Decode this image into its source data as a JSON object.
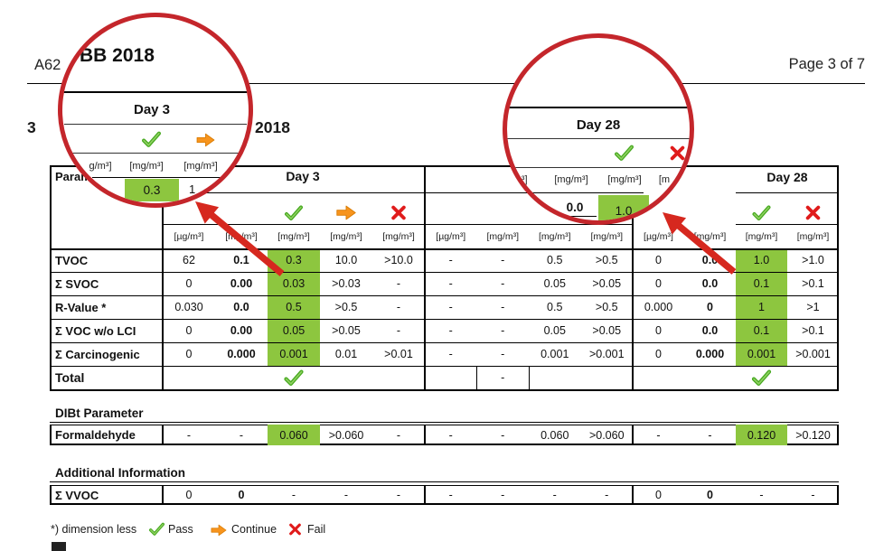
{
  "header": {
    "report_no_visible": "A62",
    "page_label": "Page 3 of 7"
  },
  "heading": {
    "left_fragment": "3",
    "right_fragment": "2018"
  },
  "table": {
    "parameter_label": "Parameter",
    "col_groups": {
      "day3": {
        "label": "Day 3",
        "icons": [
          "pass-check",
          "continue-arrow",
          "fail-x"
        ],
        "units": [
          "[µg/m³]",
          "[mg/m³]",
          "[mg/m³]",
          "[mg/m³]",
          "[mg/m³]"
        ]
      },
      "middle": {
        "units": [
          "[µg/m³]",
          "[mg/m³]",
          "[mg/m³]",
          "[mg/m³]"
        ]
      },
      "day28": {
        "label": "Day 28",
        "icons": [
          "pass-check",
          "fail-x"
        ],
        "units": [
          "[µg/m³]",
          "[mg/m³]",
          "[mg/m³]",
          "[mg/m³]"
        ]
      }
    },
    "rows": [
      {
        "name": "TVOC",
        "cells": [
          "62",
          "0.1",
          "0.3",
          "10.0",
          ">10.0",
          "-",
          "-",
          "0.5",
          ">0.5",
          "0",
          "0.0",
          "1.0",
          ">1.0"
        ]
      },
      {
        "name": "Σ SVOC",
        "cells": [
          "0",
          "0.00",
          "0.03",
          ">0.03",
          "-",
          "-",
          "-",
          "0.05",
          ">0.05",
          "0",
          "0.0",
          "0.1",
          ">0.1"
        ]
      },
      {
        "name": "R-Value  *",
        "cells": [
          "0.030",
          "0.0",
          "0.5",
          ">0.5",
          "-",
          "-",
          "-",
          "0.5",
          ">0.5",
          "0.000",
          "0",
          "1",
          ">1"
        ]
      },
      {
        "name": "Σ VOC w/o LCI",
        "cells": [
          "0",
          "0.00",
          "0.05",
          ">0.05",
          "-",
          "-",
          "-",
          "0.05",
          ">0.05",
          "0",
          "0.0",
          "0.1",
          ">0.1"
        ]
      },
      {
        "name": "Σ Carcinogenic",
        "cells": [
          "0",
          "0.000",
          "0.001",
          "0.01",
          ">0.01",
          "-",
          "-",
          "0.001",
          ">0.001",
          "0",
          "0.000",
          "0.001",
          ">0.001"
        ]
      }
    ],
    "total_row": {
      "name": "Total",
      "middle_value": "-"
    },
    "sections": {
      "dibt": "DIBt Parameter",
      "additional": "Additional Information"
    },
    "formaldehyde_row": {
      "name": "Formaldehyde",
      "cells": [
        "-",
        "-",
        "0.060",
        ">0.060",
        "-",
        "-",
        "-",
        "0.060",
        ">0.060",
        "-",
        "-",
        "0.120",
        ">0.120"
      ]
    },
    "vvoc_row": {
      "name": "Σ VVOC",
      "cells": [
        "0",
        "0",
        "-",
        "-",
        "-",
        "-",
        "-",
        "-",
        "-",
        "0",
        "0",
        "-",
        "-"
      ]
    }
  },
  "magnifier_left": {
    "heading_fragment": "BB 2018",
    "day_label": "Day 3",
    "units": [
      "g/m³]",
      "[mg/m³]",
      "[mg/m³]"
    ],
    "green_value": "0.3",
    "partial_value": "1"
  },
  "magnifier_right": {
    "day_label": "Day 28",
    "units": [
      "g/m³]",
      "[mg/m³]",
      "[mg/m³]",
      "[m"
    ],
    "value": "0.0",
    "green_value": "1.0"
  },
  "legend": {
    "footnote": "*) dimension less",
    "pass": "Pass",
    "continue": "Continue",
    "fail": "Fail"
  },
  "colors": {
    "pass_green_fill": "#8dc63f",
    "circle_red": "#c4262b",
    "arrow_red": "#d6281f",
    "check_green": "#45a81e",
    "x_red": "#e01b1b",
    "arrow_orange": "#f7941d"
  }
}
